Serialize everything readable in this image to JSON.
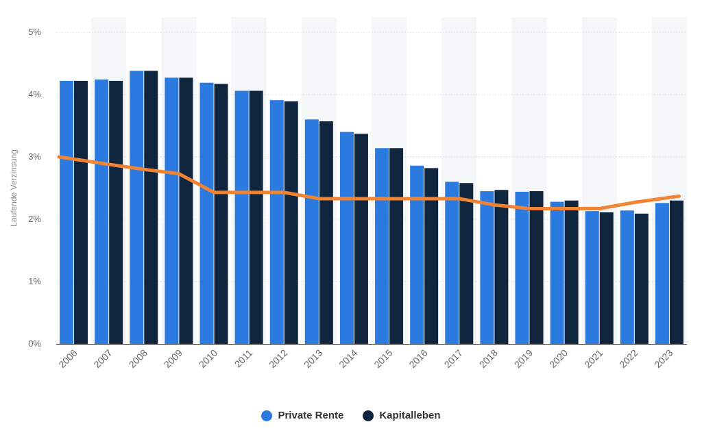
{
  "colors": {
    "private_rente": "#2a7ae0",
    "kapitalleben": "#10263f",
    "line": "#f08432",
    "band": "#f5f6f8",
    "grid": "#dfe1e5",
    "axis": "#333333"
  },
  "chart_data": {
    "type": "bar",
    "categories": [
      "2006",
      "2007",
      "2008",
      "2009",
      "2010",
      "2011",
      "2012",
      "2013",
      "2014",
      "2015",
      "2016",
      "2017",
      "2018",
      "2019",
      "2020",
      "2021",
      "2022",
      "2023"
    ],
    "series": [
      {
        "name": "Private Rente",
        "type": "bar",
        "values": [
          4.22,
          4.24,
          4.38,
          4.27,
          4.19,
          4.06,
          3.91,
          3.6,
          3.4,
          3.14,
          2.86,
          2.6,
          2.45,
          2.44,
          2.28,
          2.13,
          2.14,
          2.26
        ]
      },
      {
        "name": "Kapitalleben",
        "type": "bar",
        "values": [
          4.22,
          4.22,
          4.38,
          4.27,
          4.17,
          4.06,
          3.89,
          3.57,
          3.37,
          3.14,
          2.82,
          2.58,
          2.47,
          2.45,
          2.3,
          2.11,
          2.09,
          2.3
        ]
      },
      {
        "name": "",
        "type": "line",
        "values": [
          3.0,
          2.88,
          2.8,
          2.73,
          2.43,
          2.43,
          2.43,
          2.33,
          2.33,
          2.33,
          2.33,
          2.33,
          2.23,
          2.17,
          2.17,
          2.17,
          2.27,
          2.37
        ]
      }
    ],
    "ylim": [
      0,
      5
    ],
    "yticks": [
      "0%",
      "1%",
      "2%",
      "3%",
      "4%",
      "5%"
    ],
    "ylabel": "Laufende Verzinsung",
    "xlabel": "",
    "grid": true,
    "legend_position": "bottom"
  }
}
